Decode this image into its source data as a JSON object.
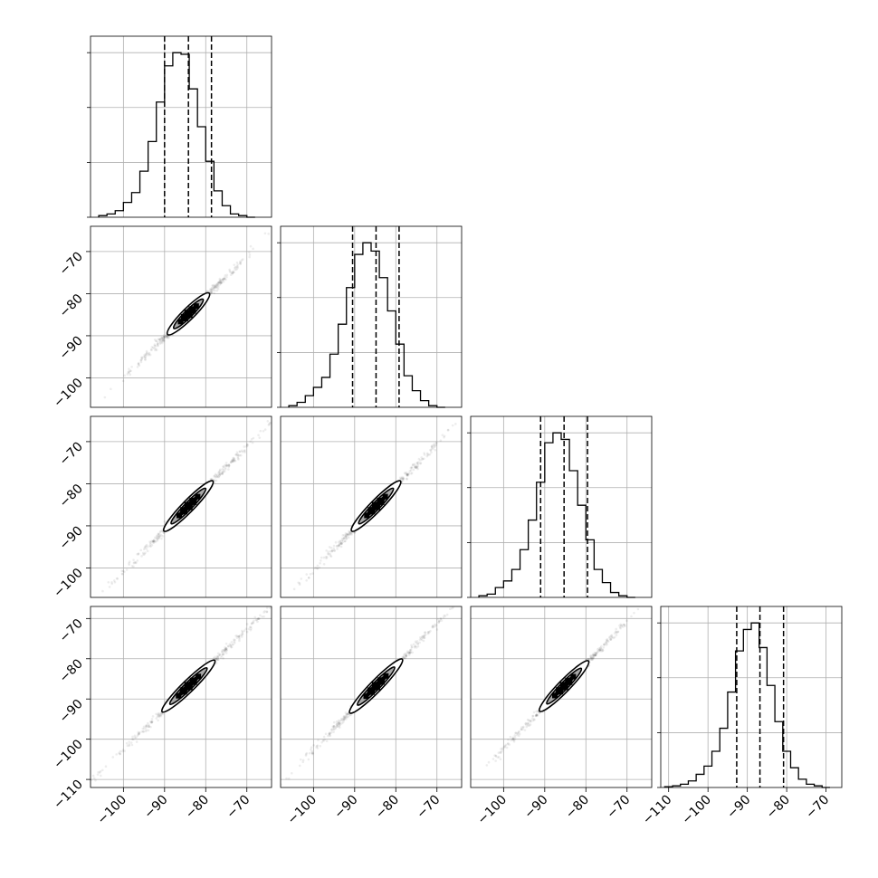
{
  "chart_data": {
    "type": "corner",
    "params": 4,
    "title": "",
    "grid": true,
    "quantile_style": "dashed",
    "diagonal": [
      {
        "param": 0,
        "xlim": [
          -108,
          -64
        ],
        "quantiles": [
          -90.0,
          -84.2,
          -78.6
        ],
        "bin_width": 2,
        "bin_start": -106,
        "counts": [
          0.01,
          0.02,
          0.04,
          0.09,
          0.15,
          0.28,
          0.46,
          0.7,
          0.92,
          1.0,
          0.99,
          0.78,
          0.55,
          0.34,
          0.16,
          0.07,
          0.02,
          0.01,
          0.0
        ]
      },
      {
        "param": 1,
        "xlim": [
          -108,
          -64
        ],
        "quantiles": [
          -90.5,
          -84.8,
          -79.2
        ],
        "bin_width": 2,
        "bin_start": -106,
        "counts": [
          0.01,
          0.03,
          0.07,
          0.12,
          0.18,
          0.32,
          0.5,
          0.72,
          0.92,
          0.99,
          0.94,
          0.78,
          0.58,
          0.38,
          0.19,
          0.1,
          0.04,
          0.01,
          0.0
        ]
      },
      {
        "param": 2,
        "xlim": [
          -108,
          -64
        ],
        "quantiles": [
          -91.0,
          -85.3,
          -79.6
        ],
        "bin_width": 2,
        "bin_start": -106,
        "counts": [
          0.01,
          0.02,
          0.06,
          0.1,
          0.17,
          0.29,
          0.47,
          0.7,
          0.94,
          1.0,
          0.96,
          0.77,
          0.56,
          0.35,
          0.17,
          0.09,
          0.03,
          0.01,
          0.0
        ]
      },
      {
        "param": 3,
        "xlim": [
          -112,
          -66
        ],
        "quantiles": [
          -92.7,
          -86.8,
          -80.8
        ],
        "bin_width": 2,
        "bin_start": -111,
        "counts": [
          0.005,
          0.01,
          0.02,
          0.04,
          0.08,
          0.13,
          0.22,
          0.36,
          0.58,
          0.83,
          0.96,
          1.0,
          0.85,
          0.62,
          0.4,
          0.22,
          0.12,
          0.05,
          0.02,
          0.01,
          0.0
        ]
      }
    ],
    "pairs": [
      {
        "col": 0,
        "row": 1,
        "xlim": [
          -108,
          -64
        ],
        "ylim": [
          -107,
          -64
        ],
        "center": [
          -84.2,
          -84.8
        ],
        "spread": [
          3.4,
          3.3
        ]
      },
      {
        "col": 0,
        "row": 2,
        "xlim": [
          -108,
          -64
        ],
        "ylim": [
          -107,
          -64
        ],
        "center": [
          -84.2,
          -85.3
        ],
        "spread": [
          4.0,
          4.0
        ]
      },
      {
        "col": 1,
        "row": 2,
        "xlim": [
          -108,
          -64
        ],
        "ylim": [
          -107,
          -64
        ],
        "center": [
          -84.8,
          -85.3
        ],
        "spread": [
          4.0,
          4.0
        ]
      },
      {
        "col": 0,
        "row": 3,
        "xlim": [
          -108,
          -64
        ],
        "ylim": [
          -112,
          -67
        ],
        "center": [
          -84.2,
          -86.8
        ],
        "spread": [
          4.3,
          4.3
        ]
      },
      {
        "col": 1,
        "row": 3,
        "xlim": [
          -108,
          -64
        ],
        "ylim": [
          -112,
          -67
        ],
        "center": [
          -84.8,
          -86.8
        ],
        "spread": [
          4.3,
          4.5
        ]
      },
      {
        "col": 2,
        "row": 3,
        "xlim": [
          -108,
          -64
        ],
        "ylim": [
          -112,
          -67
        ],
        "center": [
          -85.3,
          -86.8
        ],
        "spread": [
          4.0,
          4.2
        ]
      }
    ],
    "x_ticks": [
      {
        "col": 0,
        "values": [
          -100,
          -90,
          -80,
          -70
        ],
        "labels": [
          "−100",
          "−90",
          "−80",
          "−70"
        ]
      },
      {
        "col": 1,
        "values": [
          -100,
          -90,
          -80,
          -70
        ],
        "labels": [
          "−100",
          "−90",
          "−80",
          "−70"
        ]
      },
      {
        "col": 2,
        "values": [
          -100,
          -90,
          -80,
          -70
        ],
        "labels": [
          "−100",
          "−90",
          "−80",
          "−70"
        ]
      },
      {
        "col": 3,
        "values": [
          -110,
          -100,
          -90,
          -80,
          -70
        ],
        "labels": [
          "−110",
          "−100",
          "−90",
          "−80",
          "−70"
        ]
      }
    ],
    "y_ticks": [
      {
        "row": 1,
        "values": [
          -100,
          -90,
          -80,
          -70
        ],
        "labels": [
          "−100",
          "−90",
          "−80",
          "−70"
        ]
      },
      {
        "row": 2,
        "values": [
          -100,
          -90,
          -80,
          -70
        ],
        "labels": [
          "−100",
          "−90",
          "−80",
          "−70"
        ]
      },
      {
        "row": 3,
        "values": [
          -110,
          -100,
          -90,
          -80,
          -70
        ],
        "labels": [
          "−110",
          "−100",
          "−90",
          "−80",
          "−70"
        ]
      }
    ],
    "axis_labels": []
  }
}
